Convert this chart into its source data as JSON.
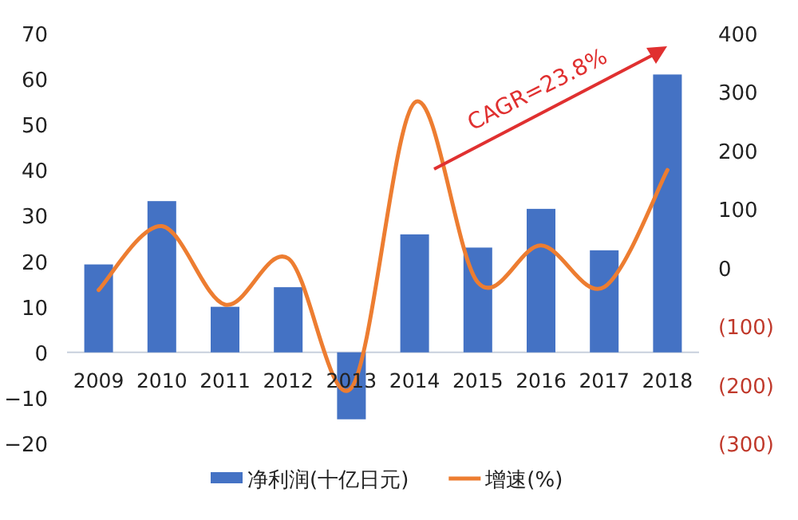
{
  "chart_data": {
    "type": "bar",
    "categories": [
      "2009",
      "2010",
      "2011",
      "2012",
      "2013",
      "2014",
      "2015",
      "2016",
      "2017",
      "2018"
    ],
    "series": [
      {
        "name": "净利润(十亿日元)",
        "color": "#4472c4",
        "values": [
          19.3,
          33.2,
          10,
          14.3,
          -14.7,
          25.9,
          23,
          31.5,
          22.4,
          61
        ]
      },
      {
        "name": "增速(%)",
        "type": "line",
        "axis": "y2",
        "color": "#ed7d31",
        "values": [
          -38,
          71,
          -63,
          16,
          -205,
          282,
          -25,
          38,
          -33,
          167
        ]
      }
    ],
    "ylim": [
      -20,
      70
    ],
    "yticks": [
      -20,
      -10,
      0,
      10,
      20,
      30,
      40,
      50,
      60,
      70
    ],
    "y2lim": [
      -300,
      400
    ],
    "y2ticks": [
      {
        "value": -300,
        "label": "(300)"
      },
      {
        "value": -200,
        "label": "(200)"
      },
      {
        "value": -100,
        "label": "(100)"
      },
      0,
      100,
      200,
      300,
      400
    ],
    "annotations": [
      "CAGR=23.8%"
    ],
    "legend": "bottom",
    "grid": false,
    "marker": "none",
    "line_style": "solid"
  }
}
